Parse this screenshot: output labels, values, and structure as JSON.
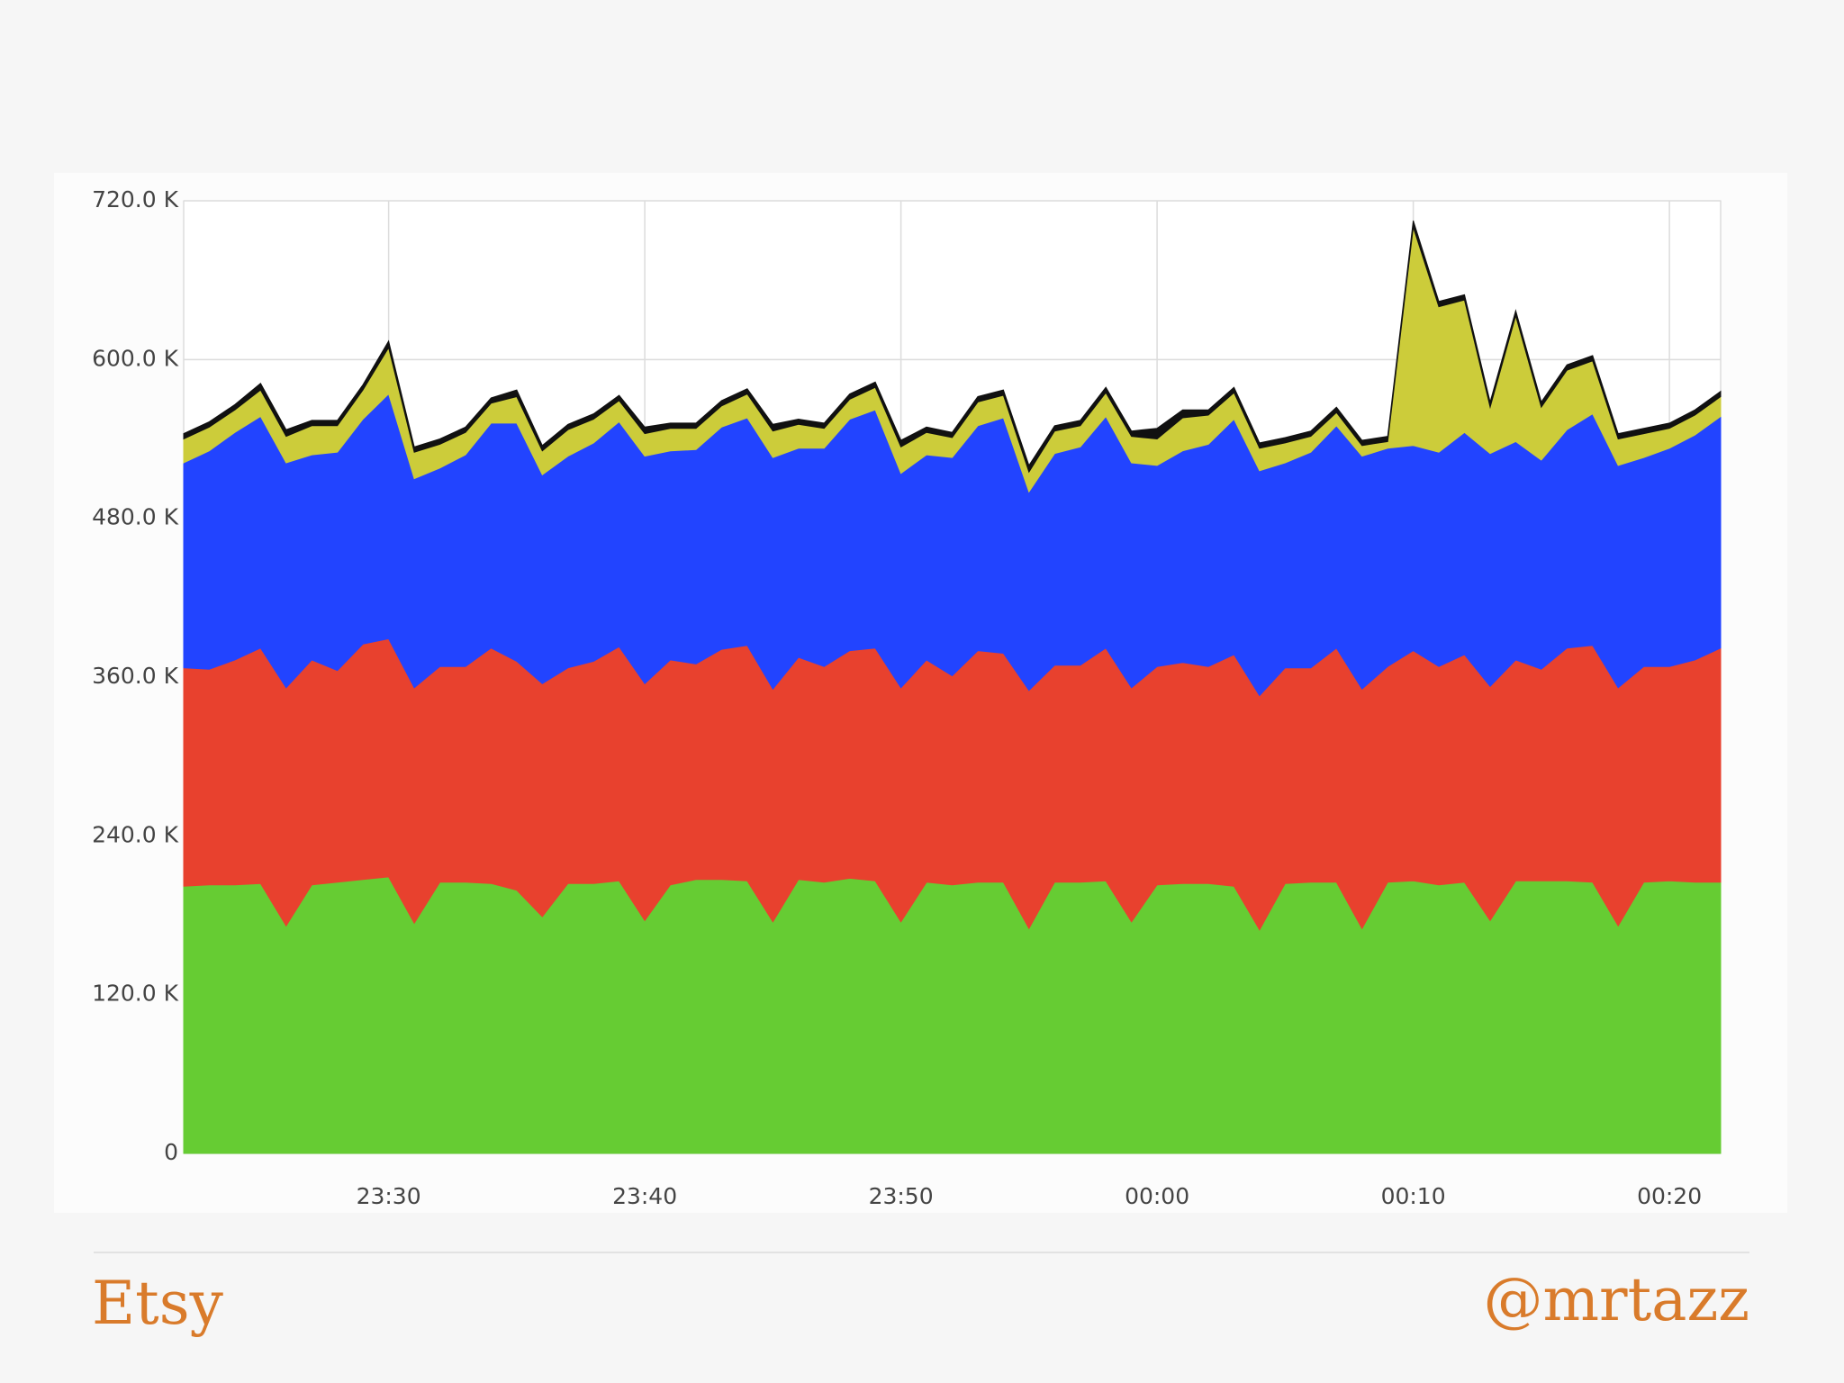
{
  "chart_data": {
    "type": "stacked-area",
    "x": [
      "23:22",
      "23:23",
      "23:24",
      "23:25",
      "23:26",
      "23:27",
      "23:28",
      "23:29",
      "23:30",
      "23:31",
      "23:32",
      "23:33",
      "23:34",
      "23:35",
      "23:36",
      "23:37",
      "23:38",
      "23:39",
      "23:40",
      "23:41",
      "23:42",
      "23:43",
      "23:44",
      "23:45",
      "23:46",
      "23:47",
      "23:48",
      "23:49",
      "23:50",
      "23:51",
      "23:52",
      "23:53",
      "23:54",
      "23:55",
      "23:56",
      "23:57",
      "23:58",
      "23:59",
      "00:00",
      "00:01",
      "00:02",
      "00:03",
      "00:04",
      "00:05",
      "00:06",
      "00:07",
      "00:08",
      "00:09",
      "00:10",
      "00:11",
      "00:12",
      "00:13",
      "00:14",
      "00:15",
      "00:16",
      "00:17",
      "00:18",
      "00:19",
      "00:20",
      "00:21",
      "00:22"
    ],
    "xlim": [
      "23:22",
      "00:22"
    ],
    "xticks": [
      "23:30",
      "23:40",
      "23:50",
      "00:00",
      "00:10",
      "00:20"
    ],
    "ylim": [
      0,
      720000
    ],
    "yticks": [
      0,
      {
        "value": 120000,
        "label": "120.0 K"
      },
      {
        "value": 240000,
        "label": "240.0 K"
      },
      {
        "value": 360000,
        "label": "360.0 K"
      },
      {
        "value": 480000,
        "label": "480.0 K"
      },
      {
        "value": 600000,
        "label": "600.0 K"
      },
      {
        "value": 720000,
        "label": "720.0 K"
      }
    ],
    "grid": true,
    "series": [
      {
        "color": "#66cc33",
        "values": [
          202000,
          203000,
          203000,
          204000,
          172000,
          203000,
          205000,
          207000,
          209000,
          174000,
          205000,
          205000,
          204000,
          199000,
          179000,
          204000,
          204000,
          206000,
          176000,
          203000,
          207000,
          207000,
          206000,
          175000,
          207000,
          205000,
          208000,
          206000,
          175000,
          205000,
          203000,
          205000,
          205000,
          170000,
          205000,
          205000,
          206000,
          175000,
          203000,
          204000,
          204000,
          202000,
          169000,
          204000,
          205000,
          205000,
          170000,
          205000,
          206000,
          203000,
          205000,
          176000,
          206000,
          206000,
          206000,
          205000,
          172000,
          205000,
          206000,
          205000,
          205000
        ]
      },
      {
        "color": "#e8412e",
        "values": [
          165000,
          163000,
          170000,
          178000,
          180000,
          170000,
          160000,
          178000,
          180000,
          178000,
          163000,
          163000,
          178000,
          173000,
          176000,
          163000,
          168000,
          177000,
          179000,
          170000,
          163000,
          174000,
          178000,
          176000,
          168000,
          163000,
          172000,
          176000,
          177000,
          168000,
          158000,
          175000,
          173000,
          180000,
          164000,
          164000,
          176000,
          177000,
          165000,
          167000,
          164000,
          175000,
          177000,
          163000,
          162000,
          177000,
          181000,
          163000,
          174000,
          165000,
          172000,
          177000,
          167000,
          160000,
          176000,
          179000,
          180000,
          163000,
          162000,
          168000,
          177000
        ]
      },
      {
        "color": "#2244ff",
        "values": [
          155000,
          165000,
          172000,
          175000,
          170000,
          155000,
          165000,
          170000,
          185000,
          158000,
          150000,
          160000,
          170000,
          180000,
          158000,
          160000,
          165000,
          170000,
          172000,
          158000,
          162000,
          168000,
          172000,
          175000,
          158000,
          165000,
          175000,
          180000,
          162000,
          155000,
          165000,
          170000,
          178000,
          150000,
          160000,
          165000,
          175000,
          170000,
          152000,
          160000,
          168000,
          178000,
          170000,
          155000,
          163000,
          168000,
          176000,
          165000,
          155000,
          162000,
          168000,
          176000,
          165000,
          158000,
          165000,
          175000,
          168000,
          158000,
          165000,
          170000,
          175000
        ]
      },
      {
        "color": "#cccc3a",
        "values": [
          18000,
          18000,
          17000,
          20000,
          20000,
          22000,
          20000,
          22000,
          35000,
          20000,
          18000,
          17000,
          15000,
          20000,
          18000,
          20000,
          18000,
          16000,
          17000,
          17000,
          16000,
          16000,
          18000,
          20000,
          18000,
          15000,
          15000,
          17000,
          20000,
          17000,
          15000,
          18000,
          17000,
          15000,
          17000,
          16000,
          18000,
          20000,
          20000,
          25000,
          22000,
          20000,
          17000,
          15000,
          12000,
          10000,
          8000,
          5000,
          165000,
          110000,
          100000,
          35000,
          95000,
          40000,
          45000,
          40000,
          20000,
          18000,
          15000,
          15000,
          15000
        ]
      },
      {
        "color": "#111111",
        "values": [
          4000,
          4000,
          4000,
          5000,
          5000,
          4000,
          4000,
          4000,
          5000,
          4000,
          4000,
          4000,
          4000,
          5000,
          4000,
          4000,
          4000,
          4000,
          5000,
          4000,
          4000,
          4000,
          4000,
          5000,
          4000,
          4000,
          4000,
          4000,
          5000,
          4000,
          4000,
          4000,
          4000,
          5000,
          4000,
          4000,
          4000,
          4000,
          8000,
          6000,
          4000,
          4000,
          4000,
          4000,
          4000,
          4000,
          4000,
          4000,
          5000,
          4000,
          4000,
          4000,
          4000,
          4000,
          4000,
          4000,
          4000,
          4000,
          4000,
          4000,
          4000
        ]
      }
    ]
  },
  "footer": {
    "left": "Etsy",
    "right": "@mrtazz"
  }
}
